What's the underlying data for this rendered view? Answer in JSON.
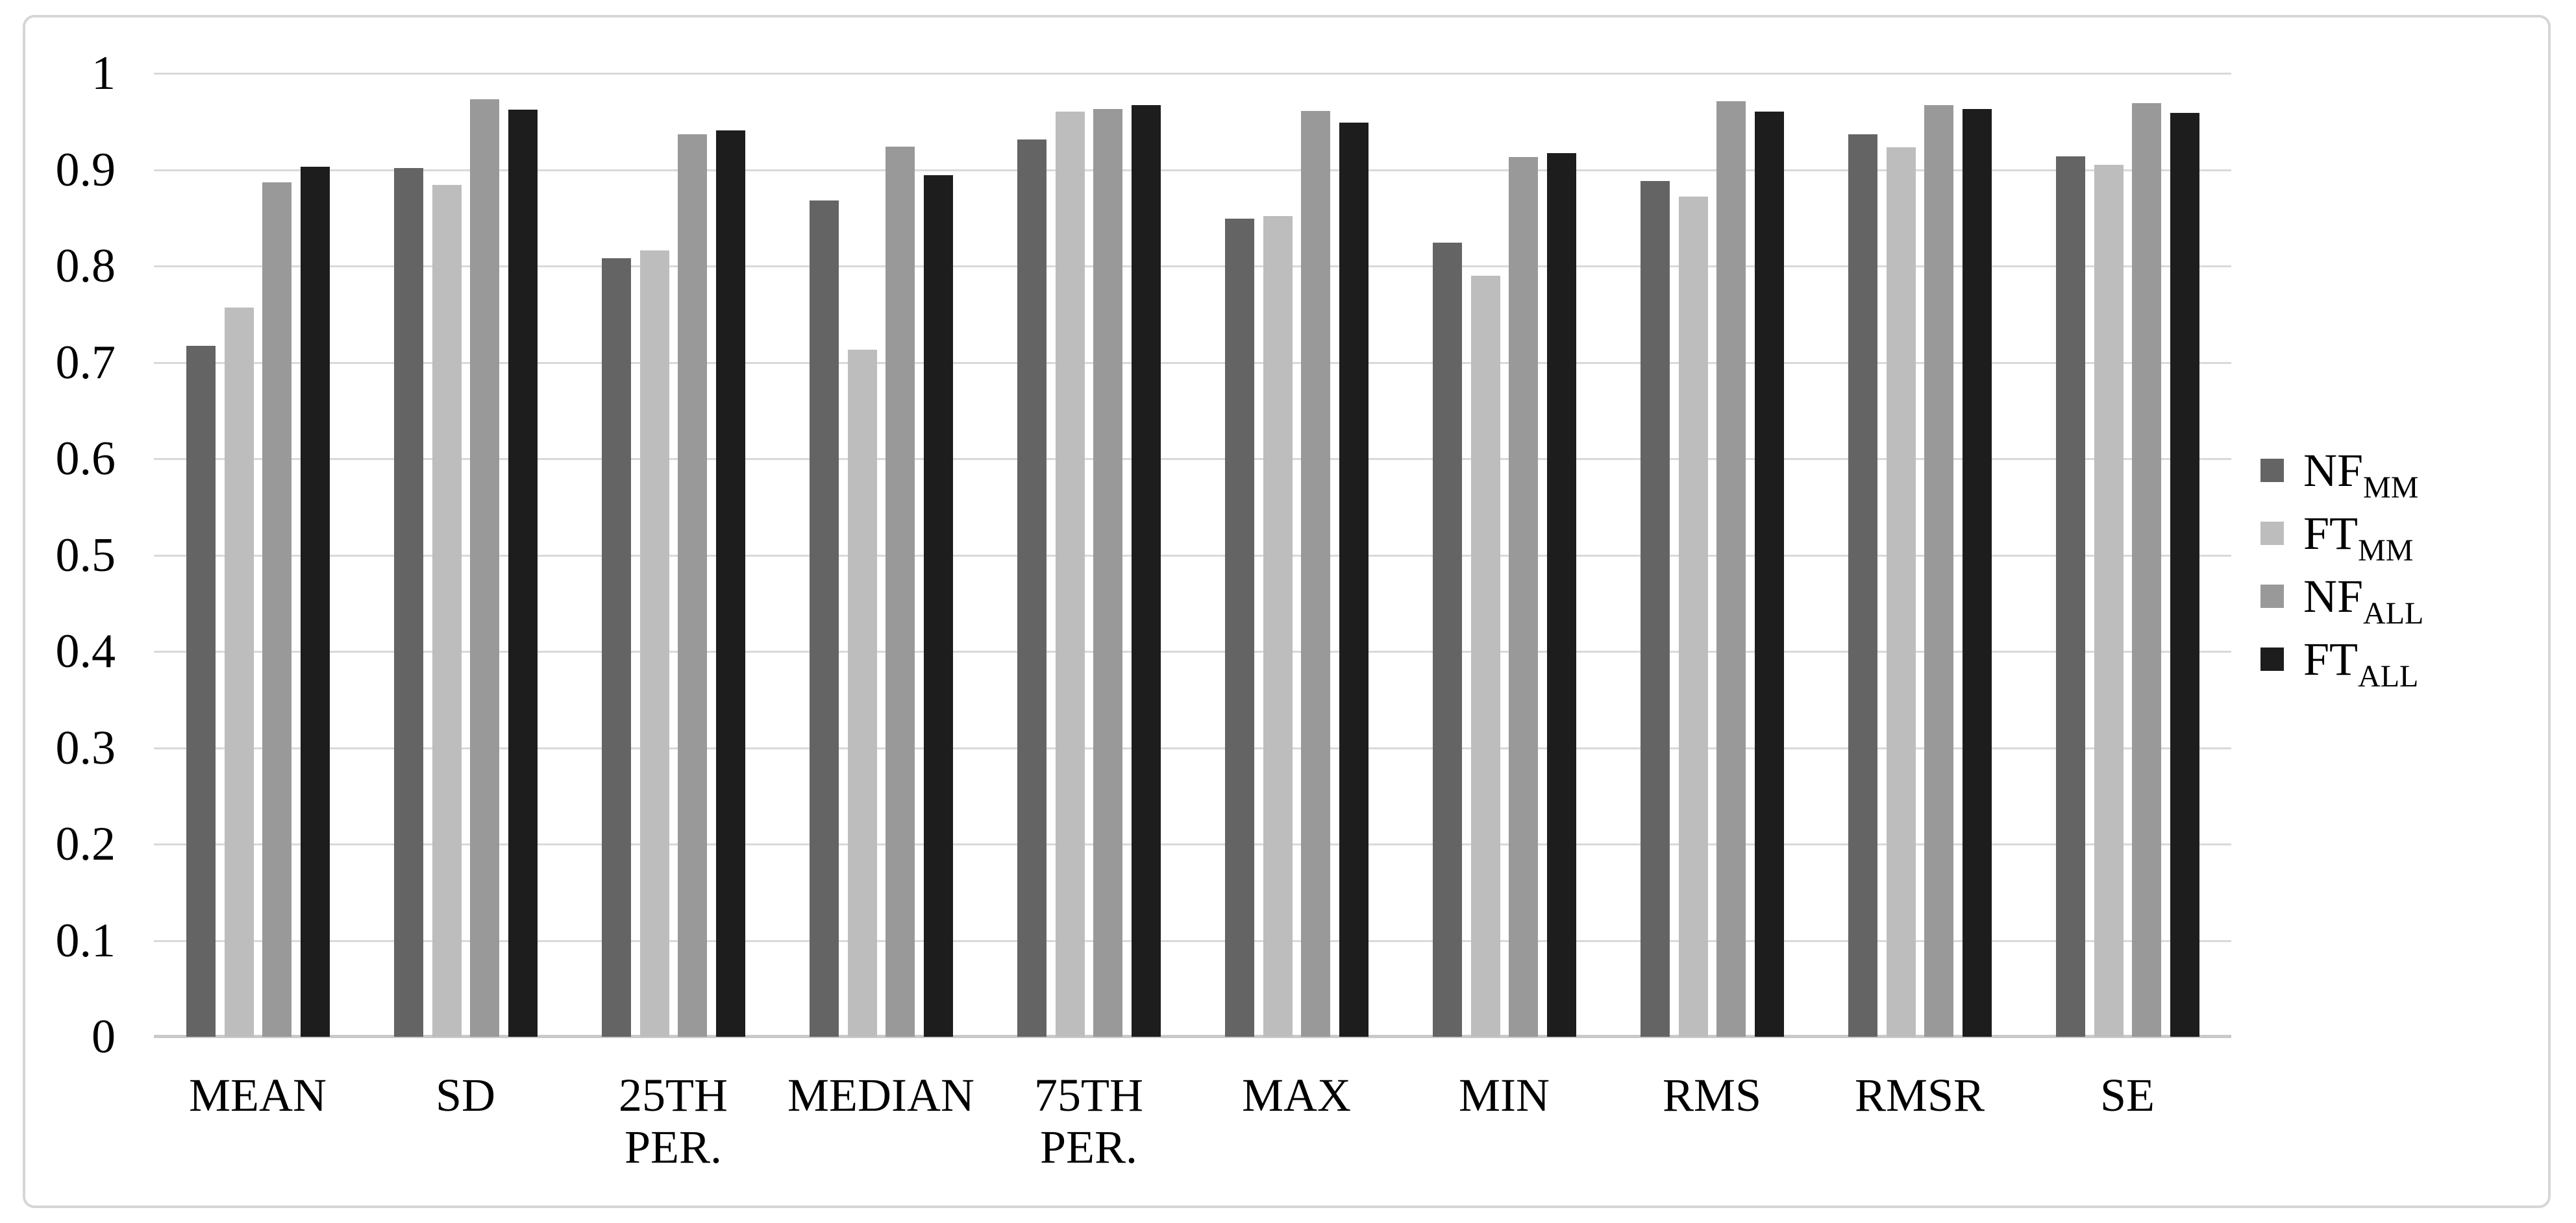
{
  "chart_data": {
    "type": "bar",
    "title": "",
    "xlabel": "",
    "ylabel": "",
    "ylim": [
      0,
      1
    ],
    "ytick_step": 0.1,
    "ytick_labels": [
      "1",
      "0.9",
      "0.8",
      "0.7",
      "0.6",
      "0.5",
      "0.4",
      "0.3",
      "0.2",
      "0.1",
      "0"
    ],
    "grid": true,
    "legend_position": "right",
    "categories": [
      "MEAN",
      "SD",
      "25TH PER.",
      "MEDIAN",
      "75TH PER.",
      "MAX",
      "MIN",
      "RMS",
      "RMSR",
      "SE"
    ],
    "category_lines": [
      [
        "MEAN"
      ],
      [
        "SD"
      ],
      [
        "25TH",
        "PER."
      ],
      [
        "MEDIAN"
      ],
      [
        "75TH",
        "PER."
      ],
      [
        "MAX"
      ],
      [
        "MIN"
      ],
      [
        "RMS"
      ],
      [
        "RMSR"
      ],
      [
        "SE"
      ]
    ],
    "series": [
      {
        "name": "NF_MM",
        "label": "NF",
        "subscript": "MM",
        "color": "#646464",
        "values": [
          0.717,
          0.902,
          0.808,
          0.868,
          0.931,
          0.849,
          0.824,
          0.888,
          0.937,
          0.914
        ]
      },
      {
        "name": "FT_MM",
        "label": "FT",
        "subscript": "MM",
        "color": "#bdbdbd",
        "values": [
          0.757,
          0.884,
          0.816,
          0.713,
          0.96,
          0.852,
          0.79,
          0.872,
          0.923,
          0.905
        ]
      },
      {
        "name": "NF_ALL",
        "label": "NF",
        "subscript": "ALL",
        "color": "#999999",
        "values": [
          0.887,
          0.973,
          0.937,
          0.924,
          0.963,
          0.961,
          0.913,
          0.971,
          0.967,
          0.969
        ]
      },
      {
        "name": "FT_ALL",
        "label": "FT",
        "subscript": "ALL",
        "color": "#1d1d1d",
        "values": [
          0.903,
          0.962,
          0.941,
          0.894,
          0.967,
          0.949,
          0.917,
          0.96,
          0.963,
          0.959
        ]
      }
    ],
    "colors": {
      "gridline": "#d9d9d9",
      "axis_line": "#c9c9c9",
      "frame_border": "#d6d6d6",
      "background": "#ffffff",
      "text": "#000000"
    }
  }
}
